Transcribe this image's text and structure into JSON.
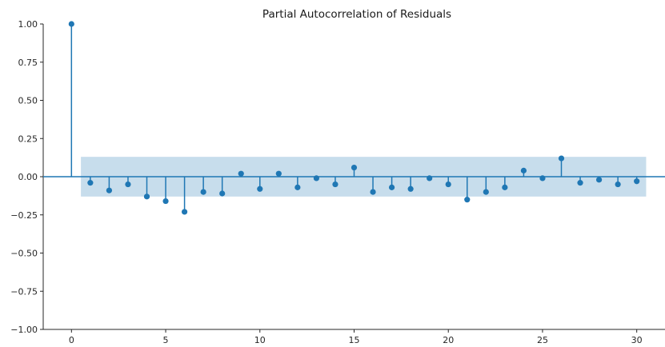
{
  "chart_data": {
    "type": "stem",
    "title": "Partial Autocorrelation of Residuals",
    "xlabel": "",
    "ylabel": "",
    "xlim": [
      -1.5,
      31.5
    ],
    "ylim": [
      -1.0,
      1.0
    ],
    "xticks": [
      0,
      5,
      10,
      15,
      20,
      25,
      30
    ],
    "yticks": [
      -1.0,
      -0.75,
      -0.5,
      -0.25,
      0.0,
      0.25,
      0.5,
      0.75,
      1.0
    ],
    "xtick_labels": [
      "0",
      "5",
      "10",
      "15",
      "20",
      "25",
      "30"
    ],
    "ytick_labels": [
      "−1.00",
      "−0.75",
      "−0.50",
      "−0.25",
      "0.00",
      "0.25",
      "0.50",
      "0.75",
      "1.00"
    ],
    "grid": false,
    "colors": {
      "stem": "#1f77b4",
      "confidence_band": "#1f77b4",
      "axis": "#262626"
    },
    "confidence_interval": {
      "x_start": 0.5,
      "x_end": 30.5,
      "lower": -0.13,
      "upper": 0.13
    },
    "lags": [
      0,
      1,
      2,
      3,
      4,
      5,
      6,
      7,
      8,
      9,
      10,
      11,
      12,
      13,
      14,
      15,
      16,
      17,
      18,
      19,
      20,
      21,
      22,
      23,
      24,
      25,
      26,
      27,
      28,
      29,
      30
    ],
    "values": [
      1.0,
      -0.04,
      -0.09,
      -0.05,
      -0.13,
      -0.16,
      -0.23,
      -0.1,
      -0.11,
      0.02,
      -0.08,
      0.02,
      -0.07,
      -0.01,
      -0.05,
      0.06,
      -0.1,
      -0.07,
      -0.08,
      -0.01,
      -0.05,
      -0.15,
      -0.1,
      -0.07,
      0.04,
      -0.01,
      0.12,
      -0.04,
      -0.02,
      -0.05,
      -0.03
    ]
  }
}
